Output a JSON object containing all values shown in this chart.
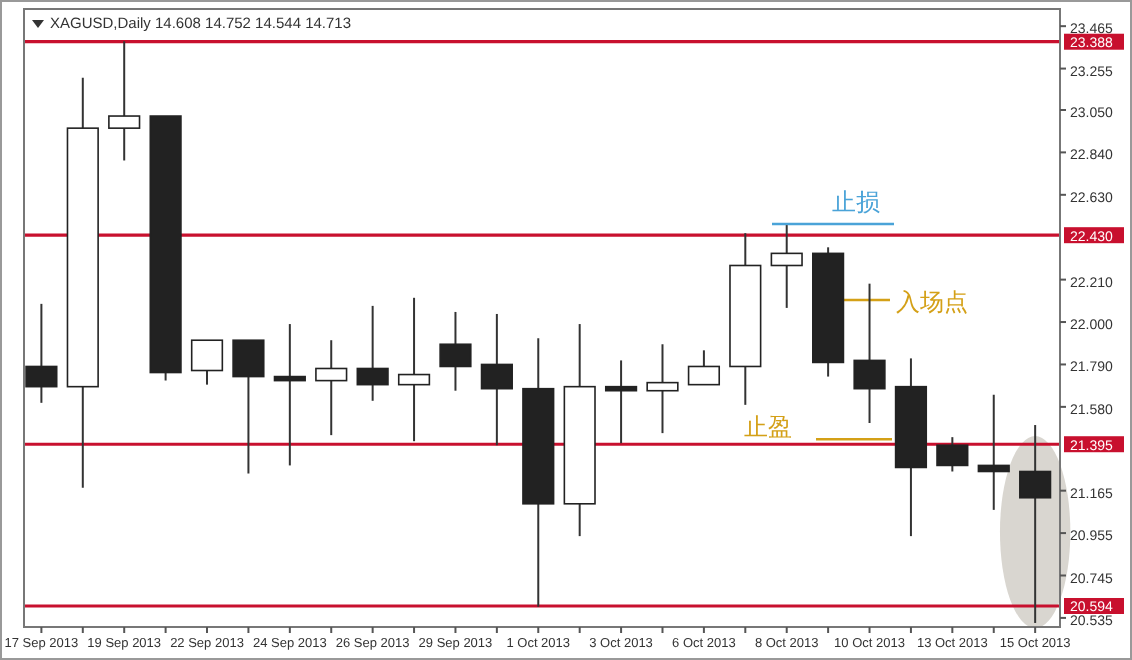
{
  "chart_data": {
    "type": "candlestick",
    "title": "XAGUSD,Daily  14.608 14.752 14.544 14.713",
    "categories": [
      "17 Sep 2013",
      null,
      "19 Sep 2013",
      null,
      "22 Sep 2013",
      null,
      "24 Sep 2013",
      null,
      "26 Sep 2013",
      null,
      "29 Sep 2013",
      null,
      "1 Oct 2013",
      null,
      "3 Oct 2013",
      null,
      "6 Oct 2013",
      null,
      "8 Oct 2013",
      null,
      "10 Oct 2013",
      null,
      "13 Oct 2013",
      null,
      "15 Oct 2013"
    ],
    "ohlc": [
      [
        21.78,
        22.09,
        21.6,
        21.68
      ],
      [
        21.68,
        23.21,
        21.18,
        22.96
      ],
      [
        22.96,
        23.39,
        22.8,
        23.02
      ],
      [
        23.02,
        23.02,
        21.71,
        21.75
      ],
      [
        21.76,
        21.91,
        21.69,
        21.91
      ],
      [
        21.91,
        21.91,
        21.25,
        21.73
      ],
      [
        21.73,
        21.99,
        21.29,
        21.71
      ],
      [
        21.71,
        21.91,
        21.44,
        21.77
      ],
      [
        21.77,
        22.08,
        21.61,
        21.69
      ],
      [
        21.69,
        22.12,
        21.41,
        21.74
      ],
      [
        21.89,
        22.05,
        21.66,
        21.78
      ],
      [
        21.79,
        22.04,
        21.39,
        21.67
      ],
      [
        21.67,
        21.92,
        20.59,
        21.1
      ],
      [
        21.1,
        21.99,
        20.94,
        21.68
      ],
      [
        21.68,
        21.81,
        21.4,
        21.66
      ],
      [
        21.66,
        21.89,
        21.45,
        21.7
      ],
      [
        21.69,
        21.86,
        21.69,
        21.78
      ],
      [
        21.78,
        22.44,
        21.59,
        22.28
      ],
      [
        22.28,
        22.48,
        22.07,
        22.34
      ],
      [
        22.34,
        22.37,
        21.73,
        21.8
      ],
      [
        21.81,
        22.19,
        21.5,
        21.67
      ],
      [
        21.68,
        21.82,
        20.94,
        21.28
      ],
      [
        21.39,
        21.43,
        21.26,
        21.29
      ],
      [
        21.29,
        21.64,
        21.07,
        21.26
      ],
      [
        21.26,
        21.49,
        20.51,
        21.13
      ]
    ],
    "ylim": [
      20.49,
      23.55
    ],
    "yticks": [
      {
        "value": 23.465,
        "label": "23.465"
      },
      {
        "value": 23.255,
        "label": "23.255"
      },
      {
        "value": 23.05,
        "label": "23.050"
      },
      {
        "value": 22.84,
        "label": "22.840"
      },
      {
        "value": 22.63,
        "label": "22.630"
      },
      {
        "value": 22.21,
        "label": "22.210"
      },
      {
        "value": 22.0,
        "label": "22.000"
      },
      {
        "value": 21.79,
        "label": "21.790"
      },
      {
        "value": 21.58,
        "label": "21.580"
      },
      {
        "value": 21.165,
        "label": "21.165"
      },
      {
        "value": 20.955,
        "label": "20.955"
      },
      {
        "value": 20.745,
        "label": "20.745"
      },
      {
        "value": 20.535,
        "label": "20.535"
      }
    ],
    "ref_lines": [
      {
        "axis": "y",
        "value": 23.388,
        "label": "23.388",
        "color": "#c8102e"
      },
      {
        "axis": "y",
        "value": 22.43,
        "label": "22.430",
        "color": "#c8102e"
      },
      {
        "axis": "y",
        "value": 21.395,
        "label": "21.395",
        "color": "#c8102e"
      },
      {
        "axis": "y",
        "value": 20.594,
        "label": "20.594",
        "color": "#c8102e"
      }
    ],
    "annotations": [
      "止损",
      "入场点",
      {
        "text": "止盈",
        "y": 21.42
      }
    ]
  }
}
